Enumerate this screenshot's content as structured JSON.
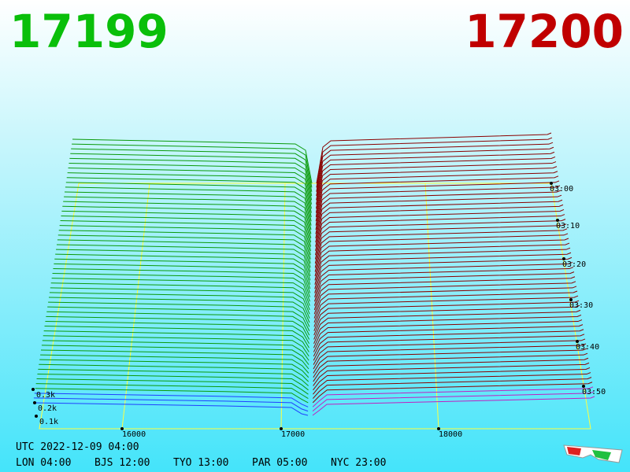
{
  "header": {
    "bid": "17199",
    "ask": "17200"
  },
  "price_ticks": [
    "16000",
    "17000",
    "18000"
  ],
  "time_ticks": [
    "03:00",
    "03:10",
    "03:20",
    "03:30",
    "03:40",
    "03:50"
  ],
  "volume_ticks": [
    "0.3k",
    "0.2k",
    "0.1k"
  ],
  "footer": {
    "utc": "UTC 2022-12-09 04:00",
    "cities": [
      "LON 04:00",
      "BJS 12:00",
      "TYO 13:00",
      "PAR 05:00",
      "NYC 23:00"
    ]
  }
}
